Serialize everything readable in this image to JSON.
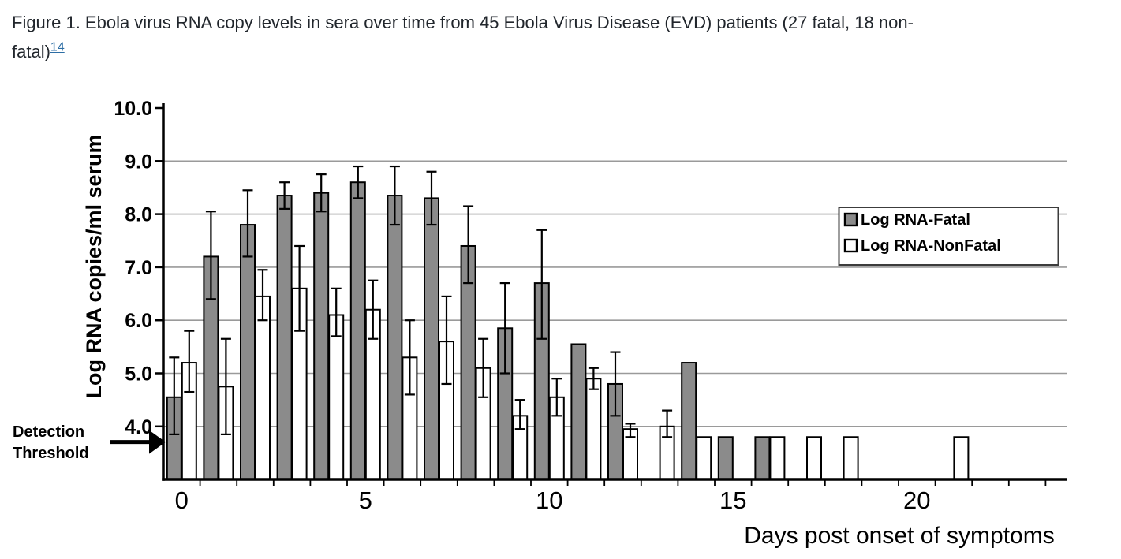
{
  "figure": {
    "caption_line1": "Figure 1. Ebola virus RNA copy levels in sera over time from 45 Ebola Virus Disease (EVD) patients (27 fatal, 18 non-",
    "caption_line2": "fatal)",
    "caption_ref": "14"
  },
  "chart_data": {
    "type": "bar",
    "title": "",
    "xlabel": "Days post onset of symptoms",
    "ylabel": "Log RNA copies/ml serum",
    "ylim": [
      3.0,
      10.0
    ],
    "xlim_days": [
      0,
      24
    ],
    "grid": "horizontal",
    "yticks": [
      4,
      5,
      6,
      7,
      8,
      9,
      10
    ],
    "ytick_labels": [
      "4.0",
      "5.0",
      "6.0",
      "7.0",
      "8.0",
      "9.0",
      "10.0"
    ],
    "xticks": [
      0,
      5,
      10,
      15,
      20
    ],
    "xtick_labels": [
      "0",
      "5",
      "10",
      "15",
      "20"
    ],
    "detection_threshold": {
      "label": "Detection Threshold",
      "value": 3.78
    },
    "legend": {
      "position": "right-inside",
      "entries": [
        {
          "label": "Log RNA-Fatal",
          "color": "#8b8b8b"
        },
        {
          "label": "Log RNA-NonFatal",
          "color": "#ffffff"
        }
      ]
    },
    "series": [
      {
        "name": "Log RNA-Fatal",
        "color": "#8b8b8b",
        "points": [
          {
            "day": 0,
            "value": 4.55,
            "err_lo": 3.85,
            "err_hi": 5.3
          },
          {
            "day": 1,
            "value": 7.2,
            "err_lo": 6.4,
            "err_hi": 8.05
          },
          {
            "day": 2,
            "value": 7.8,
            "err_lo": 7.2,
            "err_hi": 8.45
          },
          {
            "day": 3,
            "value": 8.35,
            "err_lo": 8.1,
            "err_hi": 8.6
          },
          {
            "day": 4,
            "value": 8.4,
            "err_lo": 8.05,
            "err_hi": 8.75
          },
          {
            "day": 5,
            "value": 8.6,
            "err_lo": 8.3,
            "err_hi": 8.9
          },
          {
            "day": 6,
            "value": 8.35,
            "err_lo": 7.8,
            "err_hi": 8.9
          },
          {
            "day": 7,
            "value": 8.3,
            "err_lo": 7.8,
            "err_hi": 8.8
          },
          {
            "day": 8,
            "value": 7.4,
            "err_lo": 6.7,
            "err_hi": 8.15
          },
          {
            "day": 9,
            "value": 5.85,
            "err_lo": 5.0,
            "err_hi": 6.7
          },
          {
            "day": 10,
            "value": 6.7,
            "err_lo": 5.65,
            "err_hi": 7.7
          },
          {
            "day": 11,
            "value": 5.55
          },
          {
            "day": 12,
            "value": 4.8,
            "err_lo": 4.2,
            "err_hi": 5.4
          },
          {
            "day": 14,
            "value": 5.2
          },
          {
            "day": 15,
            "value": 3.8
          },
          {
            "day": 16,
            "value": 3.8
          }
        ]
      },
      {
        "name": "Log RNA-NonFatal",
        "color": "#ffffff",
        "points": [
          {
            "day": 0,
            "value": 5.2,
            "err_lo": 4.65,
            "err_hi": 5.8
          },
          {
            "day": 1,
            "value": 4.75,
            "err_lo": 3.85,
            "err_hi": 5.65
          },
          {
            "day": 2,
            "value": 6.45,
            "err_lo": 6.0,
            "err_hi": 6.95
          },
          {
            "day": 3,
            "value": 6.6,
            "err_lo": 5.8,
            "err_hi": 7.4
          },
          {
            "day": 4,
            "value": 6.1,
            "err_lo": 5.7,
            "err_hi": 6.6
          },
          {
            "day": 5,
            "value": 6.2,
            "err_lo": 5.65,
            "err_hi": 6.75
          },
          {
            "day": 6,
            "value": 5.3,
            "err_lo": 4.6,
            "err_hi": 6.0
          },
          {
            "day": 7,
            "value": 5.6,
            "err_lo": 4.8,
            "err_hi": 6.45
          },
          {
            "day": 8,
            "value": 5.1,
            "err_lo": 4.55,
            "err_hi": 5.65
          },
          {
            "day": 9,
            "value": 4.2,
            "err_lo": 3.95,
            "err_hi": 4.5
          },
          {
            "day": 10,
            "value": 4.55,
            "err_lo": 4.2,
            "err_hi": 4.9
          },
          {
            "day": 11,
            "value": 4.9,
            "err_lo": 4.7,
            "err_hi": 5.1
          },
          {
            "day": 12,
            "value": 3.95,
            "err_lo": 3.8,
            "err_hi": 4.05
          },
          {
            "day": 13,
            "value": 4.0,
            "err_lo": 3.8,
            "err_hi": 4.3
          },
          {
            "day": 14,
            "value": 3.8
          },
          {
            "day": 16,
            "value": 3.8
          },
          {
            "day": 17,
            "value": 3.8
          },
          {
            "day": 18,
            "value": 3.8
          },
          {
            "day": 21,
            "value": 3.8
          }
        ]
      }
    ]
  }
}
